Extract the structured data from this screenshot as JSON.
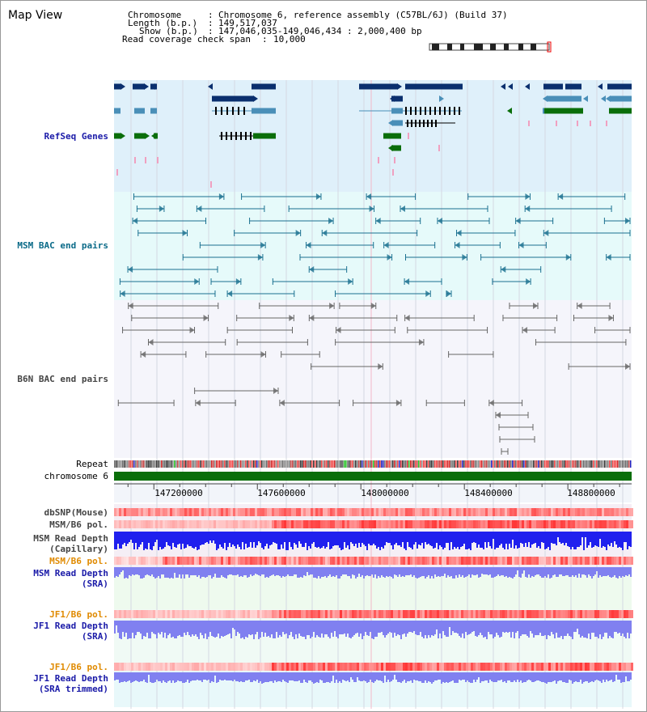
{
  "view_title": "Map View",
  "header": {
    "chromosome_key": "Chromosome",
    "chromosome_val": "Chromosome 6, reference assembly (C57BL/6J) (Build 37)",
    "length_key": "Length (b.p.)",
    "length_val": "149,517,037",
    "show_key": "Show (b.p.)",
    "show_val": "147,046,035-149,046,434 : 2,000,400 bp",
    "span_key": "Read coverage check span",
    "span_val": "10,000"
  },
  "tracks": {
    "refseq": "RefSeq Genes",
    "msm_bac": "MSM BAC end pairs",
    "b6n_bac": "B6N BAC end pairs",
    "repeat": "Repeat",
    "chromosome": "chromosome 6",
    "dbsnp": "dbSNP(Mouse)",
    "msm_b6_pol": "MSM/B6 pol.",
    "msm_read_depth_cap_1": "MSM Read Depth",
    "msm_read_depth_cap_2": "(Capillary)",
    "msm_b6_pol_sra": "MSM/B6 pol.",
    "msm_read_depth_sra_1": "MSM Read Depth",
    "msm_read_depth_sra_2": "(SRA)",
    "jf1_b6_pol": "JF1/B6 pol.",
    "jf1_read_depth_1": "JF1 Read Depth",
    "jf1_read_depth_2": "(SRA)",
    "jf1_b6_pol_2": "JF1/B6 pol.",
    "jf1_read_depth_trim_1": "JF1 Read Depth",
    "jf1_read_depth_trim_2": "(SRA trimmed)"
  },
  "axis": {
    "ticks": [
      "147200000",
      "147600000",
      "148000000",
      "148400000",
      "148800000"
    ],
    "tick_values": [
      147200000,
      147600000,
      148000000,
      148400000,
      148800000
    ],
    "range_start": 147046035,
    "range_end": 149046434
  },
  "colors": {
    "gene_dark": "#0a2f6e",
    "gene_mid": "#4a8fb8",
    "gene_green": "#0a6e0a",
    "pink_mark": "#f0a0c0",
    "msm_line": "#1a7090",
    "b6n_line": "#666666",
    "chromosome_bar": "#0a6e0a",
    "snp_red": "#e84040",
    "depth_blue": "#2020ee",
    "depth_light": "#8080f0"
  }
}
